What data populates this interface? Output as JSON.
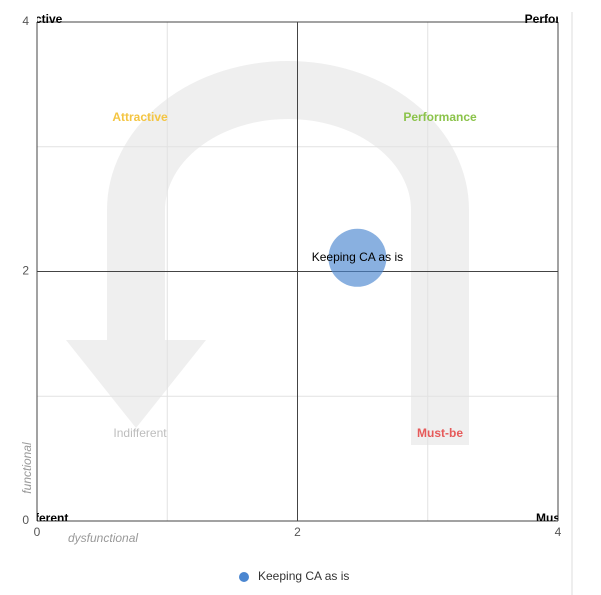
{
  "chart_data": {
    "type": "scatter",
    "xlabel": "dysfunctional",
    "ylabel": "functional",
    "xlim": [
      0,
      4
    ],
    "ylim": [
      0,
      4
    ],
    "xticks": [
      0,
      2,
      4
    ],
    "yticks": [
      0,
      2,
      4
    ],
    "x_minor_grid": [
      1,
      3
    ],
    "y_minor_grid": [
      1,
      3
    ],
    "grid": true,
    "quadrants": [
      {
        "label": "Attractive",
        "color": "#f4c542"
      },
      {
        "label": "Performance",
        "color": "#8bc34a"
      },
      {
        "label": "Indifferent",
        "color": "#bdbdbd"
      },
      {
        "label": "Must-be",
        "color": "#e65a5a"
      }
    ],
    "corner_labels": [
      "ctive",
      "Perfor",
      "ferent",
      "Mus"
    ],
    "series": [
      {
        "name": "Keeping CA as is",
        "color": "#4a86d0",
        "x": [
          2.46
        ],
        "y": [
          2.11
        ],
        "point_labels": [
          "Keeping CA as is"
        ]
      }
    ],
    "legend": "bottom"
  }
}
